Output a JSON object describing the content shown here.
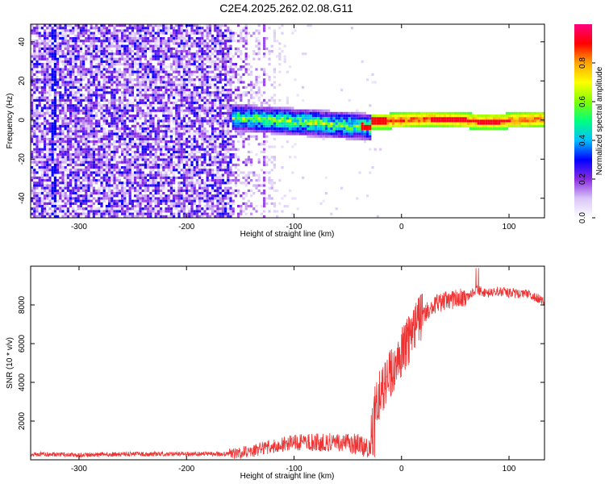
{
  "title": "C2E4.2025.262.02.08.G11",
  "chart_data": [
    {
      "type": "heatmap",
      "title": "C2E4.2025.262.02.08.G11",
      "xlabel": "Height of straight line (km)",
      "ylabel": "Frequency (Hz)",
      "xlim": [
        -345,
        133
      ],
      "ylim": [
        -50,
        49
      ],
      "xticks": [
        -300,
        -200,
        -100,
        0,
        100
      ],
      "yticks": [
        -40,
        -20,
        0,
        20,
        40
      ],
      "colorbar": {
        "label": "Normalized spectral amplitude",
        "range": [
          0,
          1
        ],
        "ticks": [
          0.0,
          0.2,
          0.4,
          0.6,
          0.8
        ],
        "colors": [
          "#ffffff",
          "#d9c6f7",
          "#8a2be2",
          "#0000ff",
          "#00bfff",
          "#00ff80",
          "#80ff00",
          "#ffff00",
          "#ffa500",
          "#ff0000",
          "#ff0080"
        ]
      },
      "regions": [
        {
          "name": "noise",
          "x": [
            -345,
            -160
          ],
          "freq_span": [
            -50,
            49
          ],
          "amplitude": 0.12
        },
        {
          "name": "transition",
          "x": [
            -160,
            -100
          ],
          "freq_span": [
            -50,
            49
          ],
          "amplitude": 0.06
        },
        {
          "name": "emerging-line",
          "x": [
            -160,
            -30
          ],
          "freq_center": [
            1,
            -4
          ],
          "amplitude": 0.35
        },
        {
          "name": "dominant-line",
          "x": [
            -30,
            133
          ],
          "freq_center": [
            0,
            0
          ],
          "amplitude": 0.9
        }
      ]
    },
    {
      "type": "line",
      "xlabel": "Height of straight line (km)",
      "ylabel": "SNR (10 * v/v)",
      "xlim": [
        -345,
        133
      ],
      "ylim": [
        0,
        10000
      ],
      "xticks": [
        -300,
        -200,
        -100,
        0,
        100
      ],
      "yticks": [
        2000,
        4000,
        6000,
        8000
      ],
      "series": [
        {
          "name": "SNR",
          "color": "#ee3333",
          "x": [
            -345,
            -300,
            -250,
            -200,
            -160,
            -140,
            -120,
            -100,
            -80,
            -60,
            -40,
            -30,
            -25,
            -20,
            -10,
            0,
            10,
            20,
            30,
            40,
            50,
            60,
            70,
            80,
            90,
            100,
            110,
            120,
            133
          ],
          "y": [
            300,
            250,
            300,
            300,
            300,
            450,
            700,
            900,
            900,
            900,
            800,
            600,
            2500,
            3500,
            4500,
            5500,
            6500,
            7500,
            8000,
            8200,
            8300,
            8400,
            8800,
            8600,
            8700,
            8600,
            8600,
            8500,
            8200
          ]
        }
      ]
    }
  ]
}
